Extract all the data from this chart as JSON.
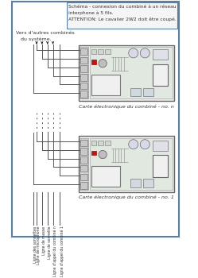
{
  "title_box_text": "Schéma - connexion du combiné à un réseau\ninterphone à 5 fils.\nATTENTION: Le cavalier 2W2 doit être coupé.",
  "label_top_left": "Vers d'autres combinés\n   du système.",
  "card_label_top": "Carte électronique du combiné - no. n",
  "card_label_bottom": "Carte électronique du combiné - no. 1",
  "bottom_labels": [
    "Ligne des sonnettes",
    "Ligne de microphone",
    "Ligne de masse",
    "Ligne de sonnette",
    "Ligne d'appel du combiné n",
    "Ligne d'appel du combiné 1"
  ],
  "bg_color": "#ffffff",
  "border_color": "#5580a8",
  "card_bg": "#ececec",
  "card_border": "#666666",
  "line_color": "#555555",
  "text_color": "#333333"
}
